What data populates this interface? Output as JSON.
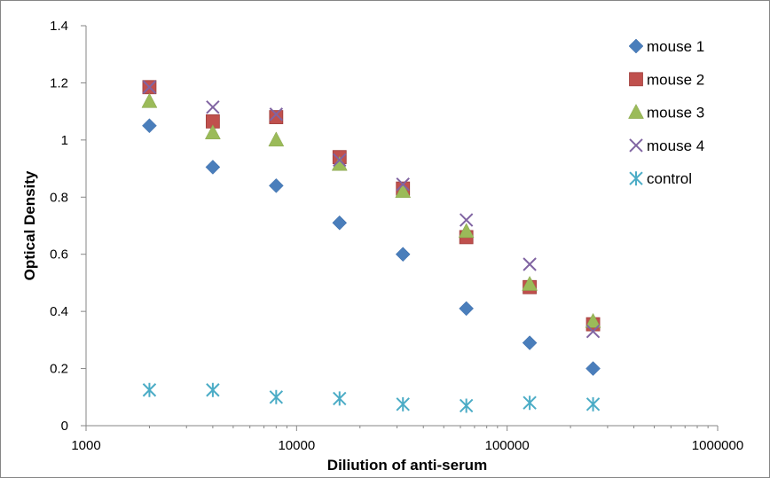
{
  "chart_data": {
    "type": "scatter",
    "title": "",
    "xlabel": "Diliution of anti-serum",
    "ylabel": "Optical Density",
    "xscale": "log",
    "xlim": [
      1000,
      1000000
    ],
    "ylim": [
      0,
      1.4
    ],
    "grid": false,
    "legend_position": "right",
    "x_ticks": [
      1000,
      10000,
      100000,
      1000000
    ],
    "x_tick_labels": [
      "1000",
      "10000",
      "100000",
      "1000000"
    ],
    "y_ticks": [
      0,
      0.2,
      0.4,
      0.6,
      0.8,
      1,
      1.2,
      1.4
    ],
    "y_tick_labels": [
      "0",
      "0.2",
      "0.4",
      "0.6",
      "0.8",
      "1",
      "1.2",
      "1.4"
    ],
    "x": [
      2000,
      4000,
      8000,
      16000,
      32000,
      64000,
      128000,
      256000
    ],
    "series": [
      {
        "name": "mouse 1",
        "marker": "diamond",
        "color": "#4a7ebb",
        "values": [
          1.05,
          0.905,
          0.84,
          0.71,
          0.6,
          0.41,
          0.29,
          0.2
        ]
      },
      {
        "name": "mouse 2",
        "marker": "square",
        "color": "#c0504d",
        "values": [
          1.185,
          1.065,
          1.08,
          0.94,
          0.83,
          0.66,
          0.485,
          0.355
        ]
      },
      {
        "name": "mouse 3",
        "marker": "triangle",
        "color": "#9bbb59",
        "values": [
          1.135,
          1.025,
          1.0,
          0.915,
          0.82,
          0.68,
          0.495,
          0.365
        ]
      },
      {
        "name": "mouse 4",
        "marker": "x",
        "color": "#8064a2",
        "values": [
          1.185,
          1.115,
          1.09,
          0.93,
          0.845,
          0.72,
          0.565,
          0.33
        ]
      },
      {
        "name": "control",
        "marker": "star",
        "color": "#4bacc6",
        "values": [
          0.125,
          0.125,
          0.1,
          0.095,
          0.075,
          0.07,
          0.08,
          0.075
        ]
      }
    ]
  }
}
